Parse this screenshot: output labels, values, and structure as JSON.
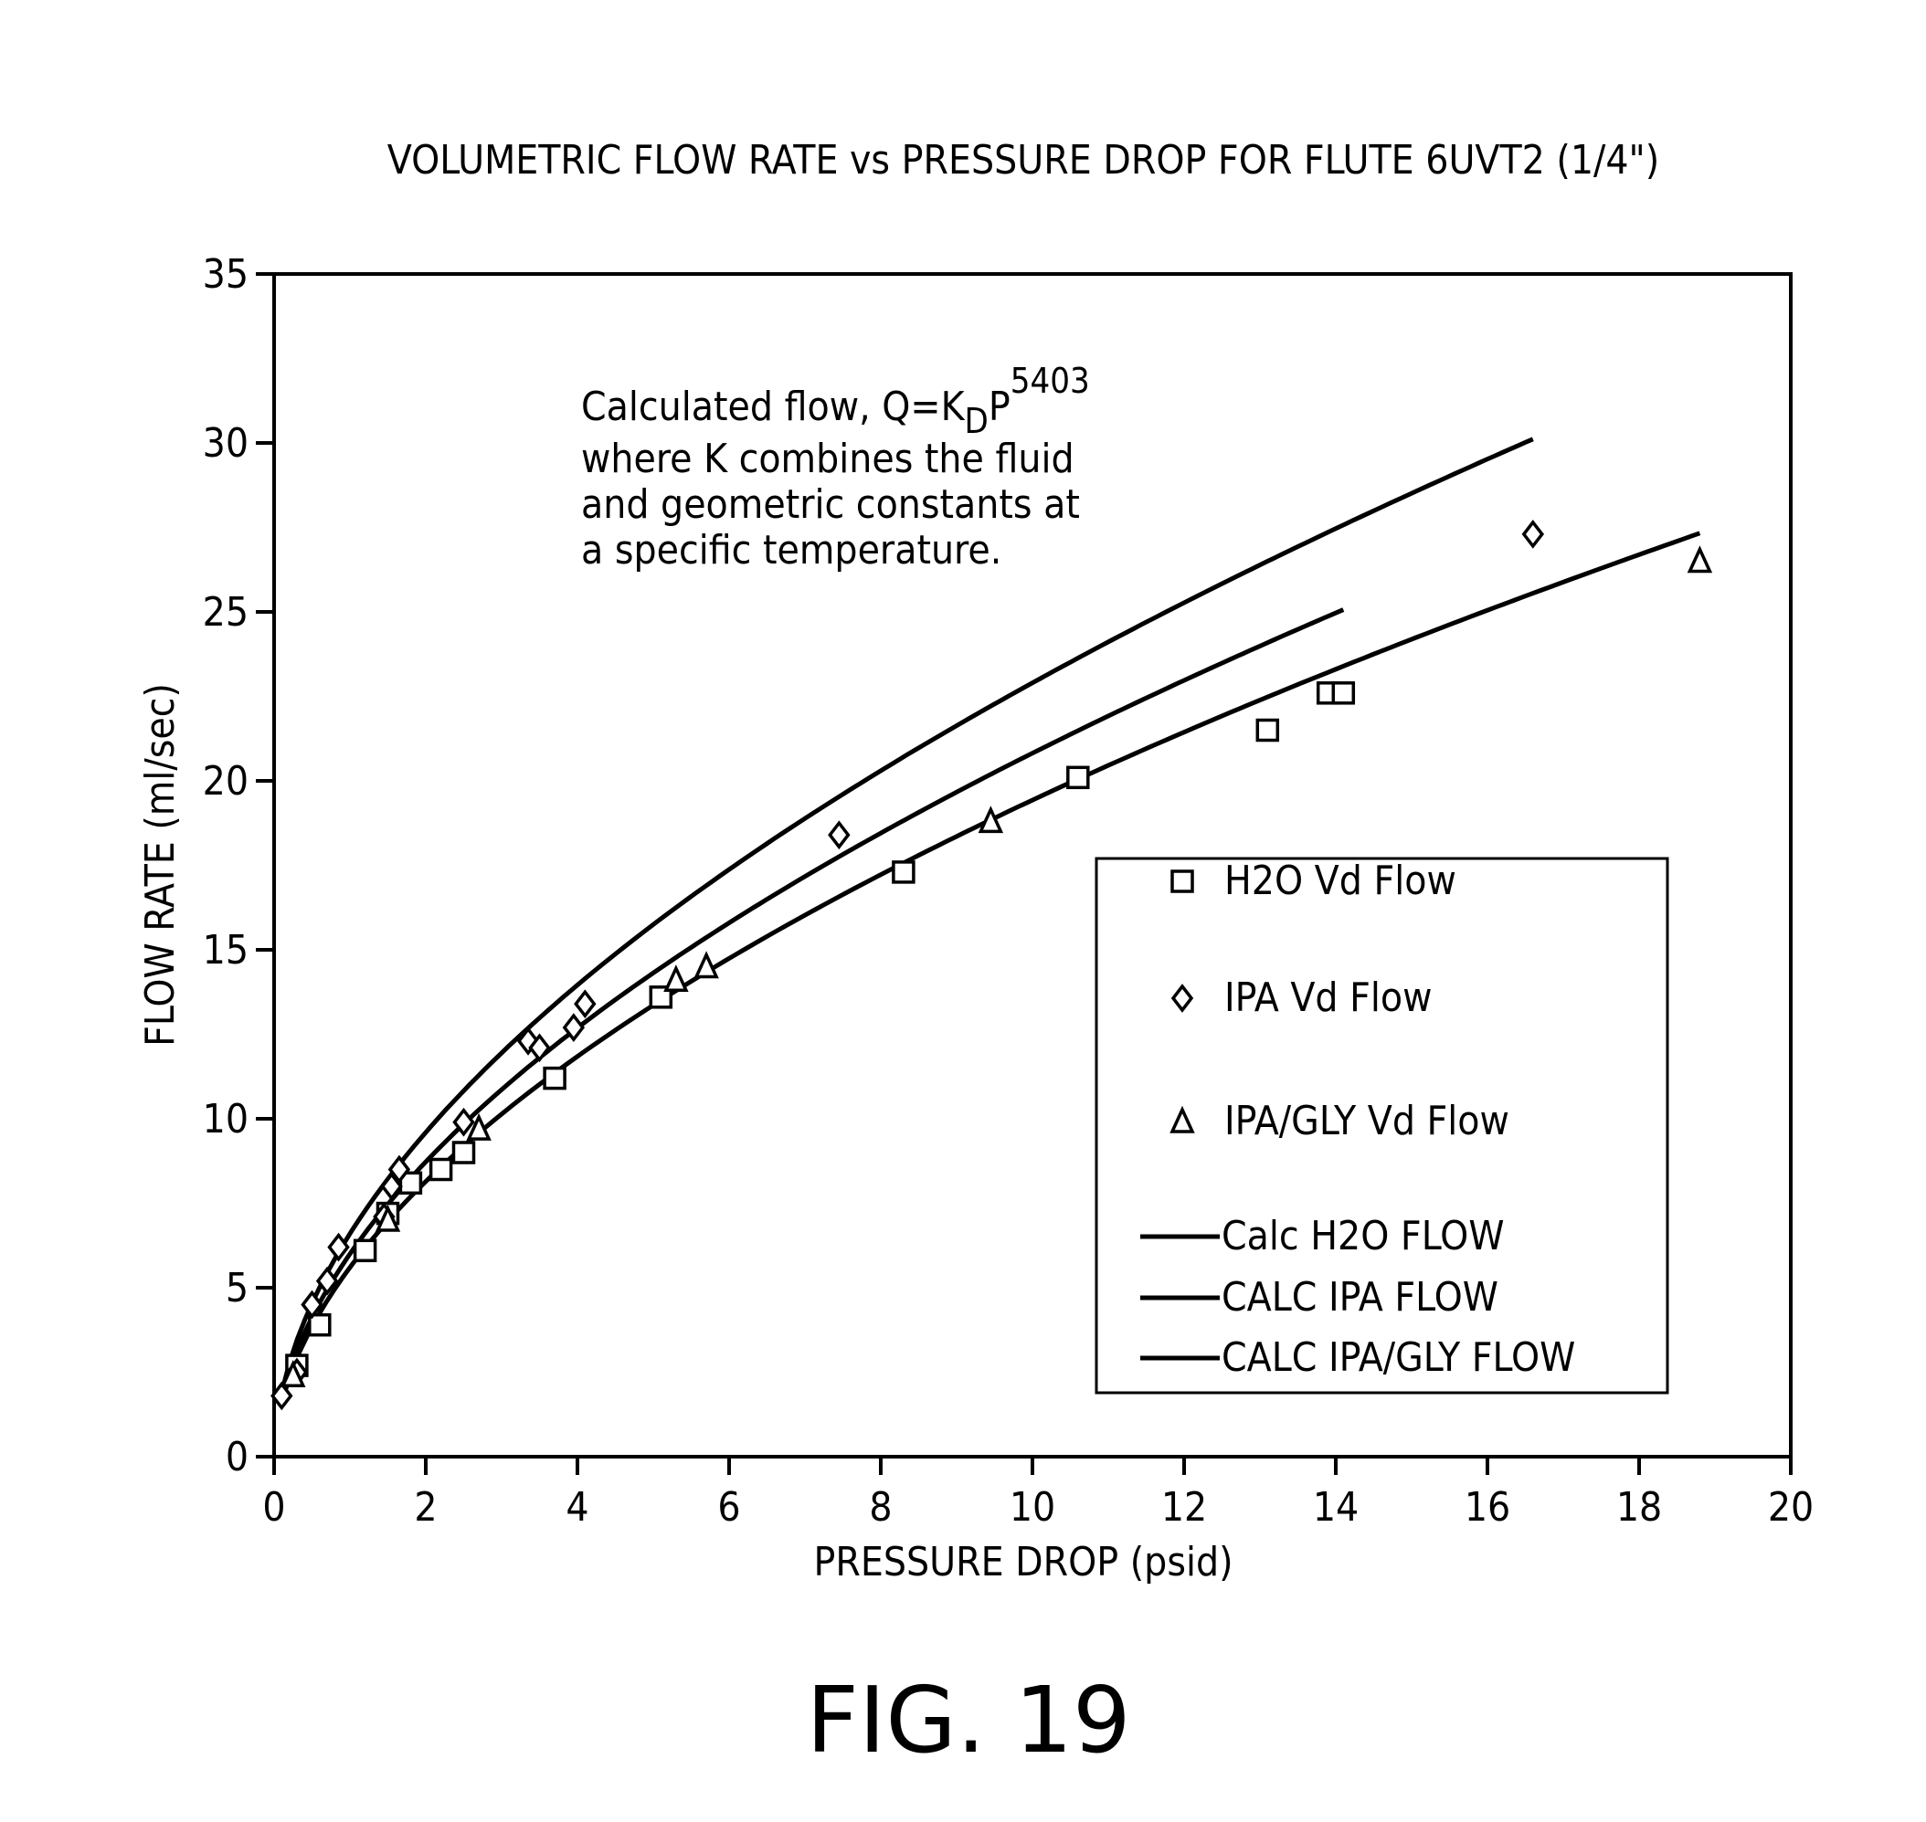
{
  "figure_label": "FIG. 19",
  "annotation": {
    "line1_prefix": "Calculated flow, Q=K",
    "line1_subscript": "D",
    "line1_suffix": "P",
    "line1_superscript": "5403",
    "line2": "where K combines the fluid",
    "line3": "and geometric constants at",
    "line4": "a specific temperature."
  },
  "chart_data": {
    "type": "scatter",
    "title": "VOLUMETRIC FLOW RATE vs PRESSURE DROP FOR FLUTE 6UVT2 (1/4\")",
    "xlabel": "PRESSURE DROP (psid)",
    "ylabel": "FLOW RATE (ml/sec)",
    "xlim": [
      0,
      20
    ],
    "ylim": [
      0,
      35
    ],
    "xticks": [
      "0",
      "2",
      "4",
      "6",
      "8",
      "10",
      "12",
      "14",
      "16",
      "18",
      "20"
    ],
    "yticks": [
      "0",
      "5",
      "10",
      "15",
      "20",
      "25",
      "30",
      "35"
    ],
    "grid": false,
    "legend_position": "lower-right",
    "series": [
      {
        "name": "H2O Vd Flow",
        "marker": "square",
        "points": [
          [
            0.3,
            2.7
          ],
          [
            0.6,
            3.9
          ],
          [
            1.2,
            6.1
          ],
          [
            1.5,
            7.2
          ],
          [
            1.8,
            8.1
          ],
          [
            2.2,
            8.5
          ],
          [
            2.5,
            9.0
          ],
          [
            3.7,
            11.2
          ],
          [
            5.1,
            13.6
          ],
          [
            8.3,
            17.3
          ],
          [
            10.6,
            20.1
          ],
          [
            13.1,
            21.5
          ],
          [
            13.9,
            22.6
          ],
          [
            14.1,
            22.6
          ]
        ]
      },
      {
        "name": "IPA Vd Flow",
        "marker": "diamond",
        "points": [
          [
            0.1,
            1.8
          ],
          [
            0.3,
            2.5
          ],
          [
            0.5,
            4.5
          ],
          [
            0.7,
            5.2
          ],
          [
            0.85,
            6.2
          ],
          [
            1.45,
            7.1
          ],
          [
            1.55,
            8.0
          ],
          [
            1.65,
            8.5
          ],
          [
            2.5,
            9.9
          ],
          [
            3.35,
            12.3
          ],
          [
            3.5,
            12.1
          ],
          [
            3.95,
            12.7
          ],
          [
            4.1,
            13.4
          ],
          [
            7.45,
            18.4
          ],
          [
            16.6,
            27.3
          ]
        ]
      },
      {
        "name": "IPA/GLY Vd Flow",
        "marker": "triangle",
        "points": [
          [
            0.25,
            2.4
          ],
          [
            1.5,
            7.0
          ],
          [
            2.7,
            9.7
          ],
          [
            5.3,
            14.1
          ],
          [
            5.7,
            14.5
          ],
          [
            9.45,
            18.8
          ],
          [
            18.8,
            26.5
          ]
        ]
      },
      {
        "name": "Calc H2O FLOW",
        "style": "line",
        "coefficient": 6.0,
        "exponent": 0.5403,
        "x_range": [
          0.1,
          14.1
        ]
      },
      {
        "name": "CALC IPA FLOW",
        "style": "line",
        "coefficient": 6.6,
        "exponent": 0.5403,
        "x_range": [
          0.1,
          16.6
        ]
      },
      {
        "name": "CALC IPA/GLY FLOW",
        "style": "line",
        "coefficient": 5.6,
        "exponent": 0.5403,
        "x_range": [
          0.1,
          18.8
        ]
      }
    ]
  }
}
